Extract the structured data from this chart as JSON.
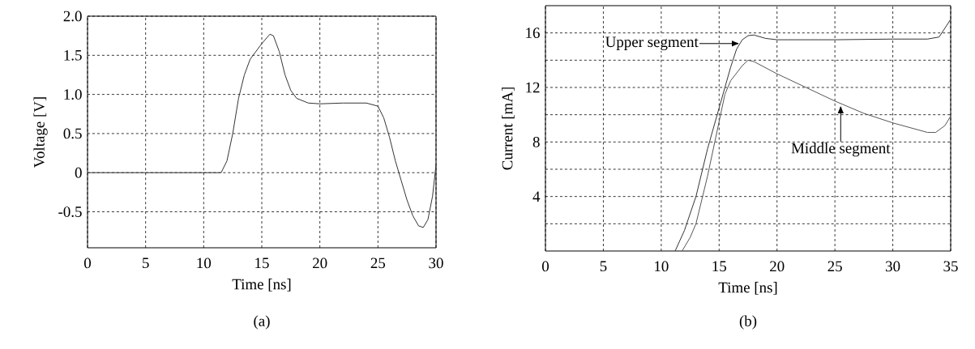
{
  "chart_data": [
    {
      "type": "line",
      "xlabel": "Time [ns]",
      "ylabel": "Voltage [V]",
      "xlim": [
        0,
        30
      ],
      "ylim": [
        -0.96,
        2.0
      ],
      "xticks": [
        0,
        5,
        10,
        15,
        20,
        25,
        30
      ],
      "yticks": [
        -0.5,
        0,
        0.5,
        {
          "value": 1,
          "label": "1.0"
        },
        1.5,
        {
          "value": 2,
          "label": "2.0"
        }
      ],
      "grid": true,
      "series": [
        {
          "color": "#333333",
          "x": [
            0,
            11.5,
            12,
            12.5,
            13,
            13.5,
            14,
            15,
            15.7,
            16,
            16.5,
            17,
            17.5,
            18,
            19,
            20,
            22,
            24,
            25,
            25.5,
            26,
            26.5,
            27,
            27.5,
            28,
            28.5,
            28.9,
            29.3,
            29.7,
            30
          ],
          "values": [
            0,
            0,
            0.15,
            0.5,
            0.95,
            1.25,
            1.45,
            1.65,
            1.77,
            1.75,
            1.55,
            1.25,
            1.05,
            0.95,
            0.89,
            0.88,
            0.89,
            0.89,
            0.85,
            0.7,
            0.45,
            0.15,
            -0.1,
            -0.35,
            -0.55,
            -0.68,
            -0.7,
            -0.6,
            -0.3,
            0.1
          ]
        }
      ],
      "annotations": [
        "(a)"
      ]
    },
    {
      "type": "line",
      "xlabel": "Time [ns]",
      "ylabel": "Current [mA]",
      "xlim": [
        0,
        35
      ],
      "ylim": [
        0,
        18
      ],
      "xticks": [
        0,
        5,
        10,
        15,
        20,
        25,
        30,
        35
      ],
      "yticks": [
        {
          "value": 2,
          "label": null
        },
        4,
        {
          "value": 6,
          "label": null
        },
        8,
        {
          "value": 10,
          "label": null
        },
        12,
        {
          "value": 14,
          "label": null
        },
        16
      ],
      "grid": true,
      "series": [
        {
          "color": "#333333",
          "x": [
            11.2,
            12,
            13,
            14,
            15,
            16,
            16.5,
            17,
            17.5,
            18,
            19,
            20,
            25,
            30,
            33,
            34,
            35
          ],
          "values": [
            0,
            1.5,
            4,
            7.5,
            10.5,
            13.5,
            14.8,
            15.5,
            15.8,
            15.85,
            15.6,
            15.5,
            15.5,
            15.55,
            15.55,
            15.7,
            17
          ]
        },
        {
          "color": "#555555",
          "x": [
            11.8,
            12.5,
            13,
            14,
            15,
            15.5,
            16,
            17,
            17.5,
            18,
            20,
            22.5,
            25,
            27.5,
            30,
            33,
            33.7,
            34.5,
            35
          ],
          "values": [
            0,
            1,
            2,
            5.5,
            9.5,
            11.5,
            12.5,
            13.6,
            14,
            13.9,
            13,
            12,
            11,
            10.1,
            9.4,
            8.7,
            8.7,
            9.2,
            9.9
          ]
        }
      ],
      "annotations": [
        {
          "text": "Upper segment",
          "x": 16.8,
          "y": 15.22
        },
        {
          "text": "Middle segment",
          "x": 25.5,
          "y": 10.7
        },
        "(b)"
      ]
    }
  ]
}
